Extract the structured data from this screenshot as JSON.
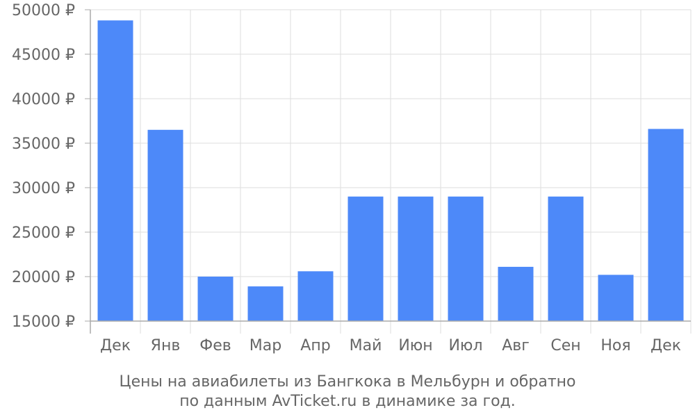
{
  "chart_data": {
    "type": "bar",
    "categories": [
      "Дек",
      "Янв",
      "Фев",
      "Мар",
      "Апр",
      "Май",
      "Июн",
      "Июл",
      "Авг",
      "Сен",
      "Ноя",
      "Дек"
    ],
    "values": [
      48800,
      36500,
      20000,
      18900,
      20600,
      29000,
      29000,
      29000,
      21100,
      29000,
      20200,
      36600
    ],
    "ylim": [
      15000,
      50000
    ],
    "yticks": [
      15000,
      20000,
      25000,
      30000,
      35000,
      40000,
      45000,
      50000
    ],
    "ytick_labels": [
      "15000 ₽",
      "20000 ₽",
      "25000 ₽",
      "30000 ₽",
      "35000 ₽",
      "40000 ₽",
      "45000 ₽",
      "50000 ₽"
    ],
    "grid": true,
    "bar_color": "#4d89f9",
    "caption_lines": [
      "Цены на авиабилеты из Бангкока в Мельбурн и обратно",
      "по данным AvTicket.ru в динамике за год."
    ]
  }
}
